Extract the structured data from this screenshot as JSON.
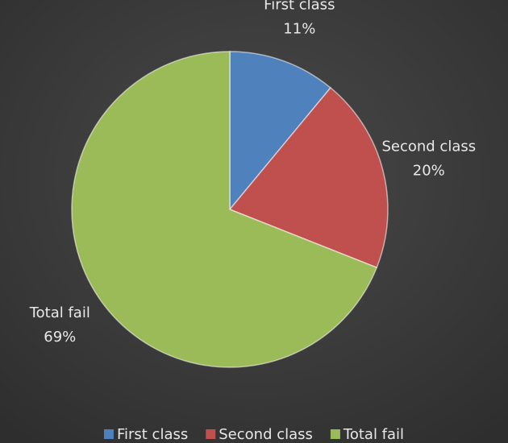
{
  "chart_data": {
    "type": "pie",
    "categories": [
      "First class",
      "Second class",
      "Total fail"
    ],
    "values": [
      11,
      20,
      69
    ],
    "value_labels": [
      "11%",
      "20%",
      "69%"
    ],
    "colors": [
      "#4f81bd",
      "#c0504d",
      "#9bbb59"
    ],
    "legend": "bottom"
  }
}
